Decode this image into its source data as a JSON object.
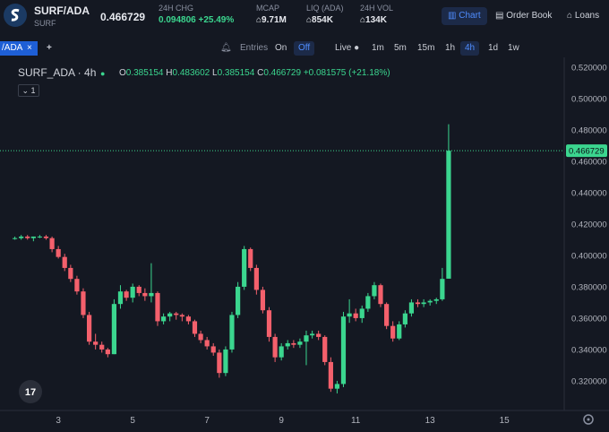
{
  "header": {
    "symbol": "SURF/ADA",
    "subtitle": "SURF"
  },
  "stats": [
    {
      "label": "24H CHG",
      "value": "0.094806",
      "extra": "+25.49%"
    },
    {
      "label": "MCAP",
      "value": "9.71M"
    },
    {
      "label": "LIQ (ADA)",
      "value": "854K"
    },
    {
      "label": "24H VOL",
      "value": "134K"
    }
  ],
  "nav": [
    "Chart",
    "Order Book",
    "Loans"
  ],
  "toolbar": {
    "tab": "/ADA",
    "close": "×",
    "add": "+",
    "entries": "Entries",
    "on": "On",
    "off": "Off",
    "live": "Live",
    "timeframes": [
      "1m",
      "5m",
      "15m",
      "1h",
      "4h",
      "1d",
      "1w"
    ]
  },
  "chart_data": {
    "type": "candlestick",
    "title": "SURF_ADA · 4h",
    "interval_badge": "1",
    "ohlc_labels": [
      "O",
      "H",
      "L",
      "C"
    ],
    "change": "+0.081575 (+21.18%)",
    "up_color": "#3bd68f",
    "down_color": "#f4606c",
    "grid": false,
    "xlim": [
      1.43,
      16.61
    ],
    "ylim": [
      0.3011,
      0.5274
    ],
    "xticks": [
      3,
      5,
      7,
      9,
      11,
      13,
      15
    ],
    "yticks": [
      {
        "value": 0.32,
        "label": "0.320000"
      },
      {
        "value": 0.34,
        "label": "0.340000"
      },
      {
        "value": 0.36,
        "label": "0.360000"
      },
      {
        "value": 0.38,
        "label": "0.380000"
      },
      {
        "value": 0.4,
        "label": "0.400000"
      },
      {
        "value": 0.42,
        "label": "0.420000"
      },
      {
        "value": 0.44,
        "label": "0.440000"
      },
      {
        "value": 0.46,
        "label": "0.460000"
      },
      {
        "value": 0.48,
        "label": "0.480000"
      },
      {
        "value": 0.5,
        "label": "0.500000"
      },
      {
        "value": 0.52,
        "label": "0.520000"
      }
    ],
    "x": [
      1.83,
      2,
      2.17,
      2.33,
      2.5,
      2.67,
      2.83,
      3,
      3.17,
      3.33,
      3.5,
      3.67,
      3.83,
      4,
      4.17,
      4.33,
      4.5,
      4.67,
      4.83,
      5,
      5.17,
      5.33,
      5.5,
      5.67,
      5.83,
      6,
      6.17,
      6.33,
      6.5,
      6.67,
      6.83,
      7,
      7.17,
      7.33,
      7.5,
      7.67,
      7.83,
      8,
      8.17,
      8.33,
      8.5,
      8.67,
      8.83,
      9,
      9.17,
      9.33,
      9.5,
      9.67,
      9.83,
      10,
      10.17,
      10.33,
      10.5,
      10.67,
      10.83,
      11,
      11.17,
      11.33,
      11.5,
      11.67,
      11.83,
      12,
      12.17,
      12.33,
      12.5,
      12.67,
      12.83,
      13,
      13.17,
      13.33,
      13.5
    ],
    "open": [
      0.411,
      0.411,
      0.412,
      0.411,
      0.412,
      0.412,
      0.411,
      0.404,
      0.399,
      0.392,
      0.385,
      0.377,
      0.362,
      0.345,
      0.343,
      0.34,
      0.337,
      0.369,
      0.377,
      0.373,
      0.38,
      0.376,
      0.374,
      0.376,
      0.358,
      0.361,
      0.363,
      0.362,
      0.361,
      0.358,
      0.35,
      0.346,
      0.342,
      0.338,
      0.325,
      0.34,
      0.362,
      0.38,
      0.404,
      0.392,
      0.378,
      0.365,
      0.348,
      0.335,
      0.342,
      0.344,
      0.343,
      0.345,
      0.349,
      0.35,
      0.348,
      0.332,
      0.315,
      0.318,
      0.361,
      0.363,
      0.36,
      0.366,
      0.374,
      0.381,
      0.369,
      0.355,
      0.347,
      0.356,
      0.363,
      0.37,
      0.369,
      0.37,
      0.371,
      0.372,
      0.385154
    ],
    "high": [
      0.412,
      0.413,
      0.413,
      0.412,
      0.413,
      0.413,
      0.412,
      0.406,
      0.401,
      0.394,
      0.387,
      0.379,
      0.364,
      0.35,
      0.345,
      0.341,
      0.372,
      0.381,
      0.378,
      0.382,
      0.381,
      0.379,
      0.395,
      0.377,
      0.363,
      0.364,
      0.364,
      0.363,
      0.362,
      0.359,
      0.352,
      0.348,
      0.344,
      0.34,
      0.342,
      0.364,
      0.383,
      0.406,
      0.405,
      0.394,
      0.38,
      0.367,
      0.35,
      0.344,
      0.346,
      0.346,
      0.347,
      0.352,
      0.352,
      0.352,
      0.349,
      0.335,
      0.32,
      0.364,
      0.372,
      0.366,
      0.368,
      0.376,
      0.383,
      0.382,
      0.37,
      0.358,
      0.358,
      0.365,
      0.372,
      0.372,
      0.372,
      0.372,
      0.373,
      0.392,
      0.483602
    ],
    "low": [
      0.41,
      0.41,
      0.41,
      0.409,
      0.411,
      0.41,
      0.402,
      0.398,
      0.39,
      0.383,
      0.375,
      0.36,
      0.343,
      0.34,
      0.338,
      0.335,
      0.337,
      0.366,
      0.371,
      0.37,
      0.374,
      0.371,
      0.37,
      0.355,
      0.356,
      0.358,
      0.359,
      0.358,
      0.356,
      0.348,
      0.344,
      0.34,
      0.336,
      0.322,
      0.323,
      0.338,
      0.36,
      0.378,
      0.39,
      0.375,
      0.363,
      0.345,
      0.332,
      0.333,
      0.34,
      0.341,
      0.341,
      0.33,
      0.347,
      0.346,
      0.33,
      0.313,
      0.312,
      0.316,
      0.357,
      0.358,
      0.357,
      0.364,
      0.372,
      0.367,
      0.353,
      0.345,
      0.346,
      0.354,
      0.361,
      0.367,
      0.367,
      0.368,
      0.369,
      0.371,
      0.385154
    ],
    "close": [
      0.411,
      0.412,
      0.411,
      0.412,
      0.412,
      0.411,
      0.404,
      0.399,
      0.392,
      0.385,
      0.377,
      0.362,
      0.345,
      0.343,
      0.34,
      0.337,
      0.369,
      0.377,
      0.373,
      0.38,
      0.376,
      0.374,
      0.376,
      0.358,
      0.361,
      0.363,
      0.362,
      0.361,
      0.358,
      0.35,
      0.346,
      0.342,
      0.338,
      0.325,
      0.34,
      0.362,
      0.38,
      0.404,
      0.392,
      0.378,
      0.365,
      0.348,
      0.335,
      0.342,
      0.344,
      0.343,
      0.345,
      0.349,
      0.35,
      0.348,
      0.332,
      0.315,
      0.318,
      0.361,
      0.363,
      0.36,
      0.366,
      0.374,
      0.381,
      0.369,
      0.355,
      0.347,
      0.356,
      0.363,
      0.37,
      0.369,
      0.37,
      0.371,
      0.372,
      0.385,
      0.466729
    ]
  }
}
